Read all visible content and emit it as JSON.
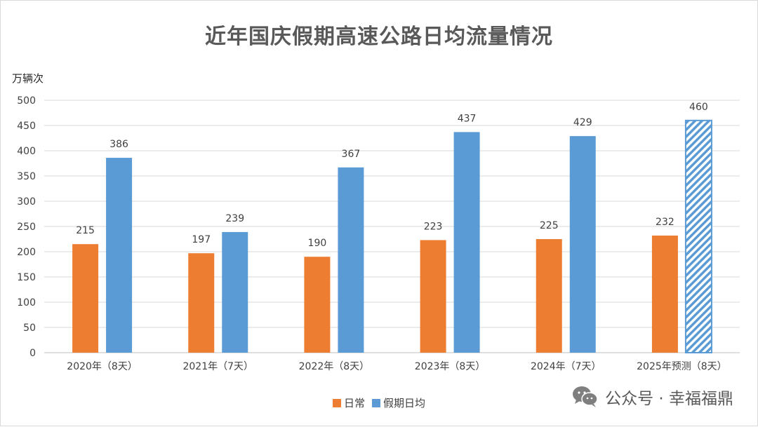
{
  "chart_data": {
    "type": "bar",
    "title": "近年国庆假期高速公路日均流量情况",
    "ylabel": "万辆次",
    "ylim": [
      0,
      500
    ],
    "yticks": [
      0,
      50,
      100,
      150,
      200,
      250,
      300,
      350,
      400,
      450,
      500
    ],
    "categories": [
      "2020年（8天）",
      "2021年（7天）",
      "2022年（8天）",
      "2023年（8天）",
      "2024年（7天）",
      "2025年预测（8天）"
    ],
    "series": [
      {
        "name": "日常",
        "color": "#ED7D31",
        "values": [
          215,
          197,
          190,
          223,
          225,
          232
        ]
      },
      {
        "name": "假期日均",
        "color": "#5B9BD5",
        "values": [
          386,
          239,
          367,
          437,
          429,
          460
        ],
        "hatched_index": 5
      }
    ],
    "grid": true,
    "legend_position": "bottom"
  },
  "watermark": {
    "text": "公众号 · 幸福福鼎",
    "icon": "wechat-icon"
  }
}
